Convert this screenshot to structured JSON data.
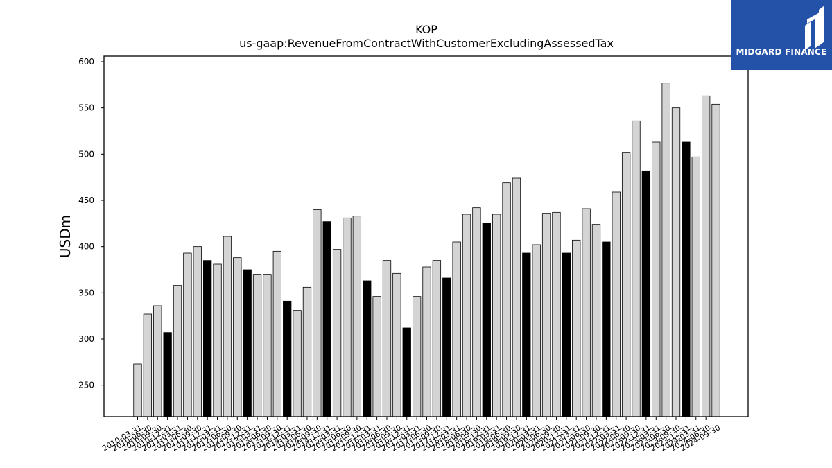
{
  "brand": {
    "name": "MIDGARD FINANCE",
    "color": "#2452a8"
  },
  "chart_data": {
    "type": "bar",
    "title": "KOP",
    "subtitle": "us-gaap:RevenueFromContractWithCustomerExcludingAssessedTax",
    "xlabel": "",
    "ylabel": "USDm",
    "ylim": [
      216,
      606
    ],
    "yticks": [
      250,
      300,
      350,
      400,
      450,
      500,
      550,
      600
    ],
    "grid": false,
    "colors": {
      "quarter": "#d4d4d4",
      "fiscal_year_end": "#000000",
      "edge": "#000000"
    },
    "categories": [
      "2010-03-31",
      "2010-06-30",
      "2010-09-30",
      "2010-12-31",
      "2011-03-31",
      "2011-06-30",
      "2011-09-30",
      "2011-12-31",
      "2012-03-31",
      "2012-06-30",
      "2012-09-30",
      "2012-12-31",
      "2013-03-31",
      "2013-06-30",
      "2013-09-30",
      "2013-12-31",
      "2014-03-31",
      "2014-06-30",
      "2014-09-30",
      "2014-12-31",
      "2015-03-31",
      "2015-06-30",
      "2015-09-30",
      "2015-12-31",
      "2016-03-31",
      "2016-06-30",
      "2016-09-30",
      "2016-12-31",
      "2017-03-31",
      "2017-06-30",
      "2017-09-30",
      "2017-12-31",
      "2018-03-31",
      "2018-06-30",
      "2018-09-30",
      "2018-12-31",
      "2019-03-31",
      "2019-06-30",
      "2019-09-30",
      "2019-12-31",
      "2020-03-31",
      "2020-06-30",
      "2020-09-30",
      "2020-12-31",
      "2021-03-31",
      "2021-06-30",
      "2021-09-30",
      "2021-12-31",
      "2022-03-31",
      "2022-06-30",
      "2022-09-30",
      "2022-12-31",
      "2023-03-31",
      "2023-06-30",
      "2023-09-30",
      "2023-12-31",
      "2024-03-31",
      "2024-06-30",
      "2024-09-30"
    ],
    "values": [
      273,
      327,
      336,
      307,
      358,
      393,
      400,
      385,
      381,
      411,
      388,
      375,
      370,
      370,
      395,
      341,
      331,
      356,
      440,
      427,
      397,
      431,
      433,
      363,
      346,
      385,
      371,
      312,
      346,
      378,
      385,
      366,
      405,
      435,
      442,
      425,
      435,
      469,
      474,
      393,
      402,
      436,
      437,
      393,
      407,
      441,
      424,
      405,
      459,
      502,
      536,
      482,
      513,
      577,
      550,
      513,
      497,
      563,
      554
    ],
    "highlighted": [
      false,
      false,
      false,
      true,
      false,
      false,
      false,
      true,
      false,
      false,
      false,
      true,
      false,
      false,
      false,
      true,
      false,
      false,
      false,
      true,
      false,
      false,
      false,
      true,
      false,
      false,
      false,
      true,
      false,
      false,
      false,
      true,
      false,
      false,
      false,
      true,
      false,
      false,
      false,
      true,
      false,
      false,
      false,
      true,
      false,
      false,
      false,
      true,
      false,
      false,
      false,
      true,
      false,
      false,
      false,
      true,
      false,
      false,
      false
    ]
  }
}
